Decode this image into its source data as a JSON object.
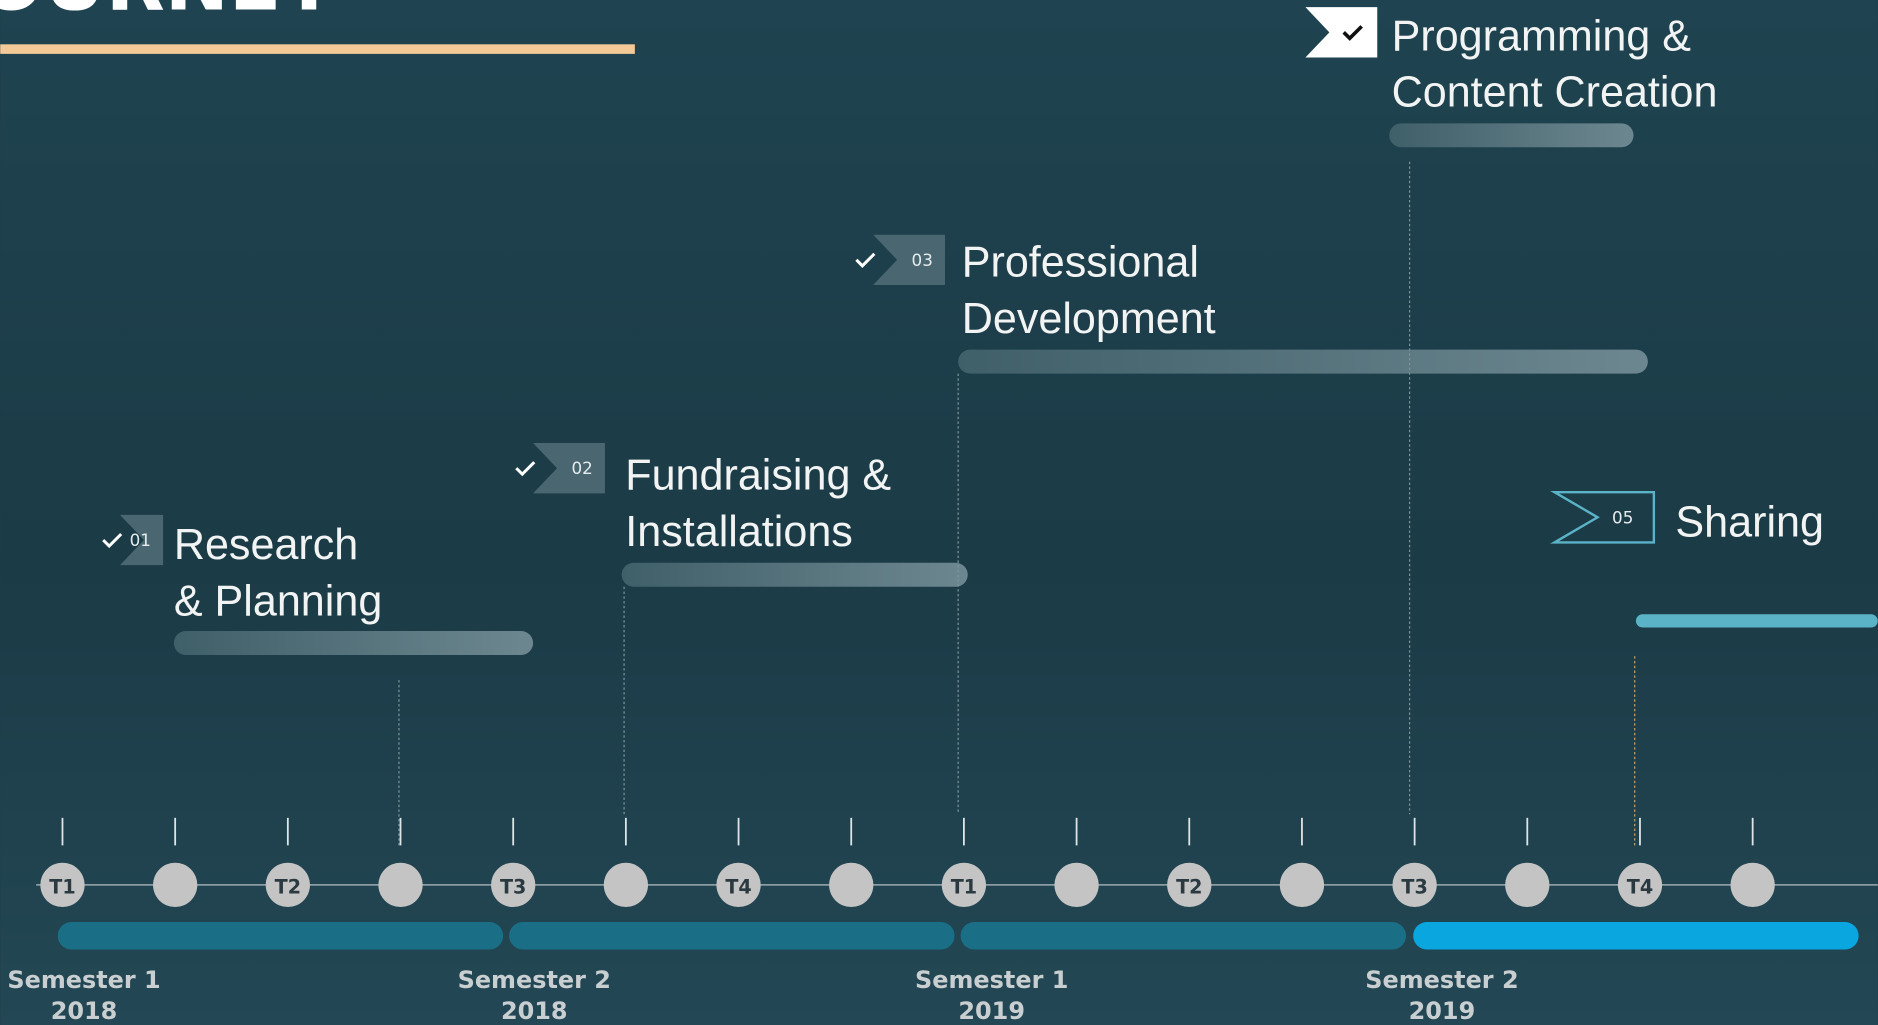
{
  "header": {
    "title": "JOURNEY"
  },
  "milestones": [
    {
      "number": "01",
      "title": [
        "Research",
        "& Planning"
      ]
    },
    {
      "number": "02",
      "title": [
        "Fundraising &",
        "Installations"
      ]
    },
    {
      "number": "03",
      "title": [
        "Professional",
        "Development"
      ]
    },
    {
      "title": [
        "Programming &",
        "Content Creation"
      ]
    },
    {
      "number": "05",
      "title": [
        "Sharing"
      ]
    }
  ],
  "terms": [
    "T1",
    null,
    "T2",
    null,
    "T3",
    null,
    "T4",
    null,
    "T1",
    null,
    "T2",
    null,
    "T3",
    null,
    "T4",
    null
  ],
  "semesters": [
    {
      "name": "Semester 1",
      "year": "2018"
    },
    {
      "name": "Semester 2",
      "year": "2018"
    },
    {
      "name": "Semester 1",
      "year": "2019"
    },
    {
      "name": "Semester 2",
      "year": "2019"
    }
  ]
}
